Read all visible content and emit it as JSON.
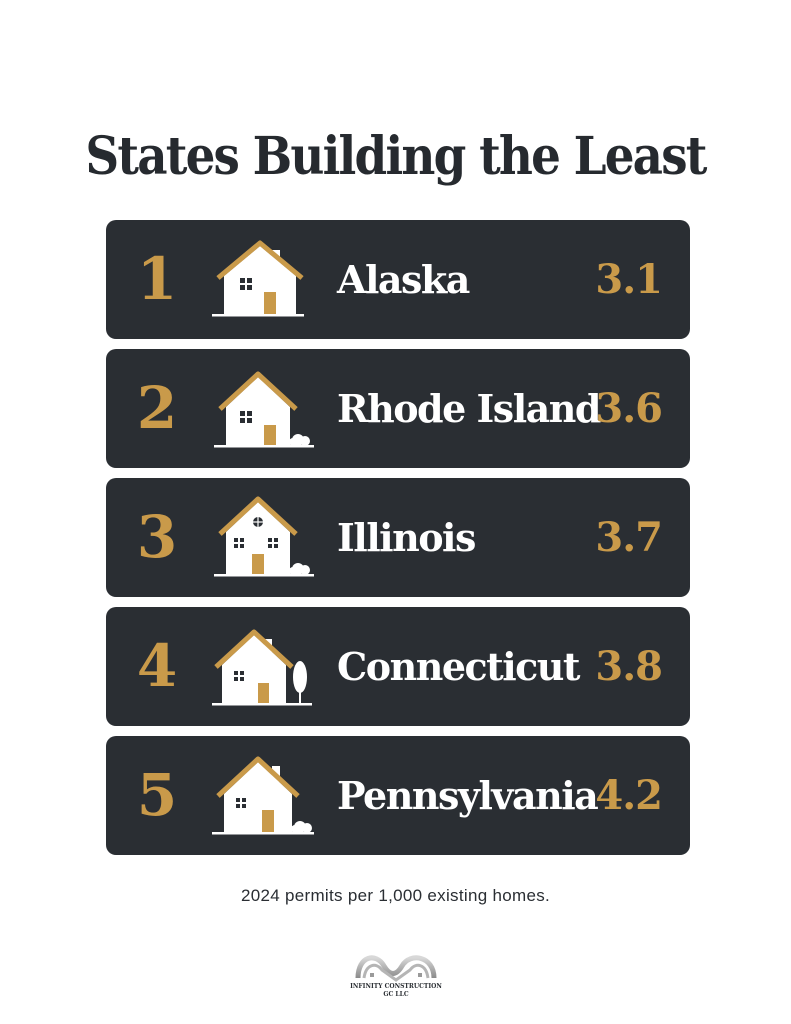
{
  "title": "States Building the Least",
  "items": [
    {
      "rank": "1",
      "state": "Alaska",
      "value": "3.1",
      "icon": "house-chimney-icon"
    },
    {
      "rank": "2",
      "state": "Rhode Island",
      "value": "3.6",
      "icon": "house-bush-icon"
    },
    {
      "rank": "3",
      "state": "Illinois",
      "value": "3.7",
      "icon": "house-two-story-icon"
    },
    {
      "rank": "4",
      "state": "Connecticut",
      "value": "3.8",
      "icon": "house-tree-icon"
    },
    {
      "rank": "5",
      "state": "Pennsylvania",
      "value": "4.2",
      "icon": "house-chimney-bush-icon"
    }
  ],
  "footnote": "2024 permits per 1,000 existing homes.",
  "logo": {
    "line1": "INFINITY CONSTRUCTION",
    "line2": "GC LLC",
    "icon": "infinity-mountain-logo-icon"
  },
  "colors": {
    "card": "#2a2e33",
    "gold": "#c99a4a",
    "title": "#262a2f",
    "text_white": "#ffffff"
  }
}
